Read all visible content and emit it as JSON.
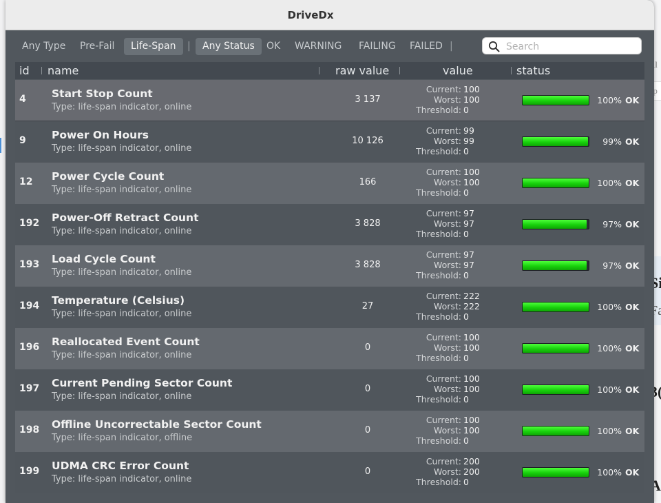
{
  "window": {
    "title": "DriveDx"
  },
  "toolbar": {
    "type_filters": [
      "Any Type",
      "Pre-Fail",
      "Life-Span"
    ],
    "status_filters": [
      "Any Status",
      "OK",
      "WARNING",
      "FAILING",
      "FAILED"
    ],
    "separator": "|",
    "search_placeholder": "Search"
  },
  "columns": {
    "id": "id",
    "name": "name",
    "raw_value": "raw value",
    "value": "value",
    "status": "status"
  },
  "value_labels": {
    "current": "Current:",
    "worst": "Worst:",
    "threshold": "Threshold:"
  },
  "rows": [
    {
      "id": "4",
      "name": "Start Stop Count",
      "type": "Type: life-span indicator, online",
      "raw": "3 137",
      "current": "100",
      "worst": "100",
      "threshold": "0",
      "percent_text": "100%",
      "percent": 100,
      "status": "OK"
    },
    {
      "id": "9",
      "name": "Power On Hours",
      "type": "Type: life-span indicator, online",
      "raw": "10 126",
      "current": "99",
      "worst": "99",
      "threshold": "0",
      "percent_text": "99%",
      "percent": 99,
      "status": "OK"
    },
    {
      "id": "12",
      "name": "Power Cycle Count",
      "type": "Type: life-span indicator, online",
      "raw": "166",
      "current": "100",
      "worst": "100",
      "threshold": "0",
      "percent_text": "100%",
      "percent": 100,
      "status": "OK"
    },
    {
      "id": "192",
      "name": "Power-Off Retract Count",
      "type": "Type: life-span indicator, online",
      "raw": "3 828",
      "current": "97",
      "worst": "97",
      "threshold": "0",
      "percent_text": "97%",
      "percent": 97,
      "status": "OK"
    },
    {
      "id": "193",
      "name": "Load Cycle Count",
      "type": "Type: life-span indicator, online",
      "raw": "3 828",
      "current": "97",
      "worst": "97",
      "threshold": "0",
      "percent_text": "97%",
      "percent": 97,
      "status": "OK"
    },
    {
      "id": "194",
      "name": "Temperature (Celsius)",
      "type": "Type: life-span indicator, online",
      "raw": "27",
      "current": "222",
      "worst": "222",
      "threshold": "0",
      "percent_text": "100%",
      "percent": 100,
      "status": "OK"
    },
    {
      "id": "196",
      "name": "Reallocated Event Count",
      "type": "Type: life-span indicator, online",
      "raw": "0",
      "current": "100",
      "worst": "100",
      "threshold": "0",
      "percent_text": "100%",
      "percent": 100,
      "status": "OK"
    },
    {
      "id": "197",
      "name": "Current Pending Sector Count",
      "type": "Type: life-span indicator, online",
      "raw": "0",
      "current": "100",
      "worst": "100",
      "threshold": "0",
      "percent_text": "100%",
      "percent": 100,
      "status": "OK"
    },
    {
      "id": "198",
      "name": "Offline Uncorrectable Sector Count",
      "type": "Type: life-span indicator, offline",
      "raw": "0",
      "current": "100",
      "worst": "100",
      "threshold": "0",
      "percent_text": "100%",
      "percent": 100,
      "status": "OK"
    },
    {
      "id": "199",
      "name": "UDMA CRC Error Count",
      "type": "Type: life-span indicator, online",
      "raw": "0",
      "current": "200",
      "worst": "200",
      "threshold": "0",
      "percent_text": "100%",
      "percent": 100,
      "status": "OK"
    }
  ],
  "background_app": {
    "fragments": [
      "til",
      "-p",
      "Si",
      "Fa",
      "3(",
      "A"
    ]
  },
  "colors": {
    "bar_green": "#18d10c",
    "window_bg": "#51575d",
    "header_bg": "#434950"
  },
  "icons": {
    "search": "search-icon"
  }
}
